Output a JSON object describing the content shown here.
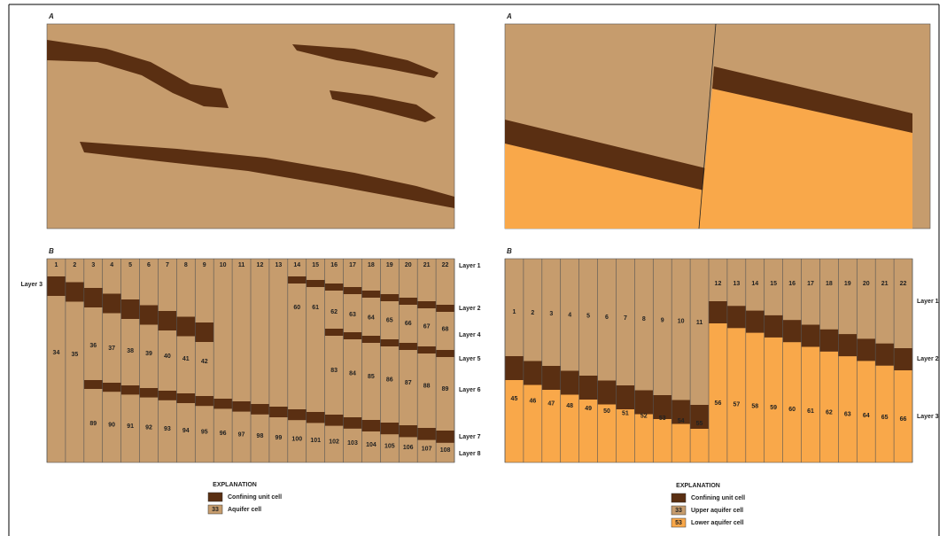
{
  "panel_a_left_label": "A",
  "panel_a_right_label": "A",
  "panel_b_left_label": "B",
  "panel_b_right_label": "B",
  "left_grid": {
    "column_numbers": [
      "1",
      "2",
      "3",
      "4",
      "5",
      "6",
      "7",
      "8",
      "9",
      "10",
      "11",
      "12",
      "13",
      "14",
      "15",
      "16",
      "17",
      "18",
      "19",
      "20",
      "21",
      "22"
    ],
    "left_layer_label": "Layer 3",
    "layer_labels": [
      "Layer 1",
      "Layer 2",
      "Layer 4",
      "Layer 5",
      "Layer 6",
      "Layer 7",
      "Layer 8"
    ],
    "cell_numbers": [
      "34",
      "35",
      "36",
      "37",
      "38",
      "39",
      "40",
      "41",
      "42",
      "60",
      "61",
      "62",
      "63",
      "64",
      "65",
      "66",
      "67",
      "68",
      "83",
      "84",
      "85",
      "86",
      "87",
      "88",
      "89",
      "89",
      "90",
      "91",
      "92",
      "93",
      "94",
      "95",
      "96",
      "97",
      "98",
      "99",
      "100",
      "101",
      "102",
      "103",
      "104",
      "105",
      "106",
      "107",
      "108"
    ]
  },
  "right_grid": {
    "column_numbers": [
      "12",
      "13",
      "14",
      "15",
      "16",
      "17",
      "18",
      "19",
      "20",
      "21",
      "22"
    ],
    "layer_labels": [
      "Layer 1",
      "Layer 2",
      "Layer 3"
    ],
    "cell_numbers": [
      "1",
      "2",
      "3",
      "4",
      "5",
      "6",
      "7",
      "8",
      "9",
      "10",
      "11",
      "45",
      "46",
      "47",
      "48",
      "49",
      "50",
      "51",
      "52",
      "53",
      "54",
      "55",
      "56",
      "57",
      "58",
      "59",
      "60",
      "61",
      "62",
      "63",
      "64",
      "65",
      "66"
    ]
  },
  "left_explanation": {
    "title": "EXPLANATION",
    "items": [
      "Confining unit cell",
      "Aquifer cell"
    ],
    "swatch_labels": [
      "33"
    ]
  },
  "right_explanation": {
    "title": "EXPLANATION",
    "items": [
      "Confining unit cell",
      "Upper aquifer cell",
      "Lower aquifer cell"
    ],
    "swatch_labels": [
      "33",
      "53"
    ]
  }
}
